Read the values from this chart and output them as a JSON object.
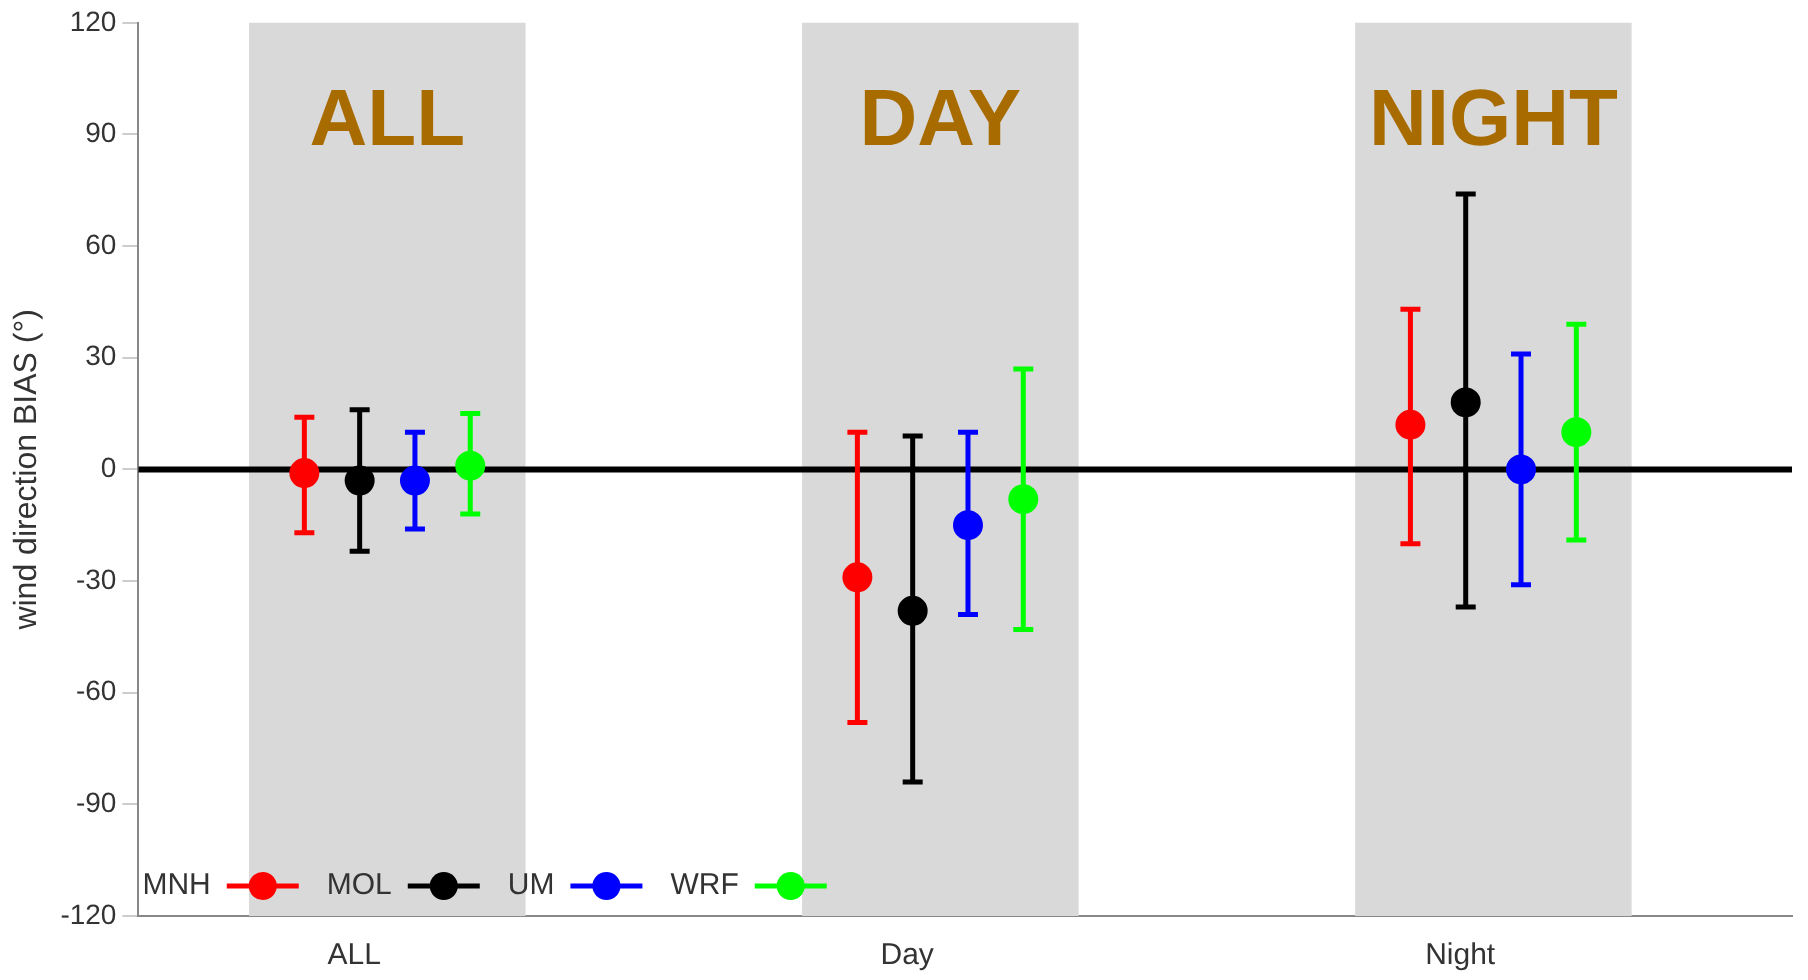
{
  "chart_data": {
    "type": "scatter",
    "ylabel": "wind direction BIAS (°)",
    "categories": [
      "ALL",
      "Day",
      "Night"
    ],
    "series": [
      {
        "name": "MNH",
        "color": "#ff0000",
        "values": [
          -1,
          -29,
          12
        ],
        "errors": [
          [
            -17,
            14
          ],
          [
            -68,
            10
          ],
          [
            -20,
            43
          ]
        ]
      },
      {
        "name": "MOL",
        "color": "#000000",
        "values": [
          -3,
          -38,
          18
        ],
        "errors": [
          [
            -22,
            16
          ],
          [
            -84,
            9
          ],
          [
            -37,
            74
          ]
        ]
      },
      {
        "name": "UM",
        "color": "#0000ff",
        "values": [
          -3,
          -15,
          0
        ],
        "errors": [
          [
            -16,
            10
          ],
          [
            -39,
            10
          ],
          [
            -31,
            31
          ]
        ]
      },
      {
        "name": "WRF",
        "color": "#00ff00",
        "values": [
          1,
          -8,
          10
        ],
        "errors": [
          [
            -12,
            15
          ],
          [
            -43,
            27
          ],
          [
            -19,
            39
          ]
        ]
      }
    ],
    "ylim": [
      -120,
      120
    ],
    "yticks": [
      -120,
      -90,
      -60,
      -30,
      0,
      30,
      60,
      90,
      120
    ],
    "ref_lines": [
      {
        "axis": "y",
        "value": 0,
        "color": "#000000"
      }
    ],
    "bands": [
      {
        "axis": "x",
        "from": "ALL",
        "to": "ALL",
        "label": "ALL",
        "color": "#d9d9d9"
      },
      {
        "axis": "x",
        "from": "Day",
        "to": "Day",
        "label": "DAY",
        "color": "#d9d9d9"
      },
      {
        "axis": "x",
        "from": "Night",
        "to": "Night",
        "label": "NIGHT",
        "color": "#d9d9d9"
      }
    ],
    "legend": "bottom left",
    "marker": "circle",
    "grid": false
  }
}
